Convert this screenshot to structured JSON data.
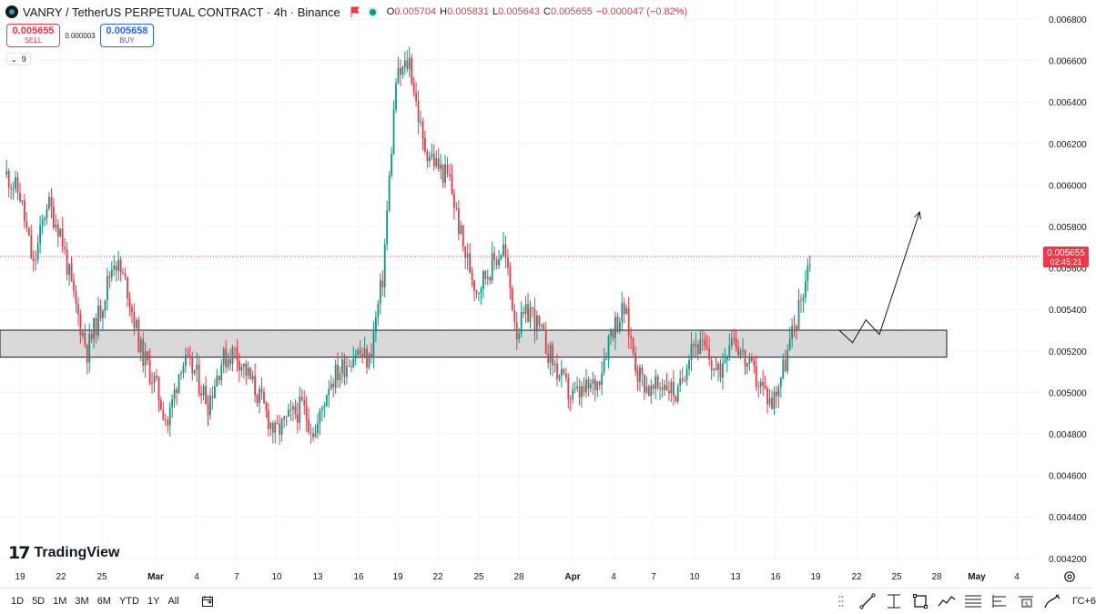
{
  "legend": {
    "title": "VANRY / TetherUS PERPETUAL CONTRACT · 4h · Binance",
    "o_label": "O",
    "o_value": "0.005704",
    "h_label": "H",
    "h_value": "0.005831",
    "l_label": "L",
    "l_value": "0.005643",
    "c_label": "C",
    "c_value": "0.005655",
    "change": "−0.000047 (−0.82%)"
  },
  "trade": {
    "sell_price": "0.005655",
    "sell_label": "SELL",
    "spread": "0.000003",
    "buy_price": "0.005658",
    "buy_label": "BUY"
  },
  "indicators": {
    "count": "9"
  },
  "watermark": {
    "text": "TradingView"
  },
  "price_axis": {
    "ticks": [
      "0.006800",
      "0.006600",
      "0.006400",
      "0.006200",
      "0.006000",
      "0.005800",
      "0.005600",
      "0.005400",
      "0.005200",
      "0.005000",
      "0.004800",
      "0.004600",
      "0.004400",
      "0.004200"
    ],
    "current_price": "0.005655",
    "countdown": "02:45:21"
  },
  "time_axis": {
    "ticks": [
      "19",
      "22",
      "25",
      "Mar",
      "4",
      "7",
      "10",
      "13",
      "16",
      "19",
      "22",
      "25",
      "28",
      "Apr",
      "4",
      "7",
      "10",
      "13",
      "16",
      "19",
      "22",
      "25",
      "28",
      "May",
      "4"
    ]
  },
  "bottom_toolbar": {
    "ranges": [
      "1D",
      "5D",
      "1M",
      "3M",
      "6M",
      "YTD",
      "1Y",
      "All"
    ],
    "timezone": "ГС+6"
  },
  "icons": [
    "tradingview-logo-icon",
    "flag-icon",
    "calendar-icon",
    "trend-line-icon",
    "fib-icon",
    "rectangle-icon",
    "path-icon",
    "channel-icon",
    "long-position-icon",
    "short-position-icon",
    "brush-icon",
    "gear-icon"
  ],
  "colors": {
    "up": "#089981",
    "down": "#f23645",
    "zone_fill": "#d9d9d9",
    "zone_border": "#131722",
    "accent": "#2962ff"
  },
  "chart_data": {
    "type": "candlestick",
    "symbol": "VANRY / TetherUS PERPETUAL CONTRACT",
    "interval": "4h",
    "x_range": [
      "2024-02-18",
      "2024-05-05"
    ],
    "ylim": [
      0.0041,
      0.0069
    ],
    "last_close": 0.005655,
    "support_zone": [
      0.00517,
      0.0053
    ],
    "price_path": [
      [
        "2024-02-18",
        0.00605
      ],
      [
        "2024-02-19",
        0.00595
      ],
      [
        "2024-02-20",
        0.0056
      ],
      [
        "2024-02-21",
        0.00592
      ],
      [
        "2024-02-22",
        0.00578
      ],
      [
        "2024-02-23",
        0.00545
      ],
      [
        "2024-02-24",
        0.0052
      ],
      [
        "2024-02-25",
        0.0054
      ],
      [
        "2024-02-26",
        0.00565
      ],
      [
        "2024-02-27",
        0.0055
      ],
      [
        "2024-02-28",
        0.0052
      ],
      [
        "2024-02-29",
        0.00505
      ],
      [
        "2024-03-01",
        0.00485
      ],
      [
        "2024-03-02",
        0.00515
      ],
      [
        "2024-03-03",
        0.0051
      ],
      [
        "2024-03-04",
        0.00495
      ],
      [
        "2024-03-05",
        0.00515
      ],
      [
        "2024-03-06",
        0.0052
      ],
      [
        "2024-03-07",
        0.00508
      ],
      [
        "2024-03-08",
        0.00495
      ],
      [
        "2024-03-09",
        0.0048
      ],
      [
        "2024-03-10",
        0.00487
      ],
      [
        "2024-03-11",
        0.00493
      ],
      [
        "2024-03-12",
        0.0048
      ],
      [
        "2024-03-13",
        0.00505
      ],
      [
        "2024-03-14",
        0.00512
      ],
      [
        "2024-03-15",
        0.0052
      ],
      [
        "2024-03-16",
        0.00515
      ],
      [
        "2024-03-17",
        0.00555
      ],
      [
        "2024-03-18",
        0.0065
      ],
      [
        "2024-03-19",
        0.0066
      ],
      [
        "2024-03-20",
        0.0062
      ],
      [
        "2024-03-21",
        0.0061
      ],
      [
        "2024-03-22",
        0.00602
      ],
      [
        "2024-03-23",
        0.0057
      ],
      [
        "2024-03-24",
        0.0055
      ],
      [
        "2024-03-25",
        0.0056
      ],
      [
        "2024-03-26",
        0.0057
      ],
      [
        "2024-03-27",
        0.0053
      ],
      [
        "2024-03-28",
        0.0054
      ],
      [
        "2024-03-29",
        0.00525
      ],
      [
        "2024-03-30",
        0.0051
      ],
      [
        "2024-03-31",
        0.00498
      ],
      [
        "2024-04-01",
        0.005
      ],
      [
        "2024-04-02",
        0.00505
      ],
      [
        "2024-04-03",
        0.0053
      ],
      [
        "2024-04-04",
        0.0054
      ],
      [
        "2024-04-05",
        0.0051
      ],
      [
        "2024-04-06",
        0.005
      ],
      [
        "2024-04-07",
        0.00505
      ],
      [
        "2024-04-08",
        0.00498
      ],
      [
        "2024-04-09",
        0.00525
      ],
      [
        "2024-04-10",
        0.0052
      ],
      [
        "2024-04-11",
        0.00508
      ],
      [
        "2024-04-12",
        0.0053
      ],
      [
        "2024-04-13",
        0.00515
      ],
      [
        "2024-04-14",
        0.00505
      ],
      [
        "2024-04-15",
        0.00495
      ],
      [
        "2024-04-16",
        0.00515
      ],
      [
        "2024-04-17",
        0.0054
      ],
      [
        "2024-04-17T20:00",
        0.005655
      ]
    ],
    "projection": [
      [
        "2024-04-20",
        0.0053
      ],
      [
        "2024-04-21",
        0.00524
      ],
      [
        "2024-04-22",
        0.00535
      ],
      [
        "2024-04-23",
        0.00528
      ],
      [
        "2024-04-26",
        0.00587
      ]
    ]
  }
}
